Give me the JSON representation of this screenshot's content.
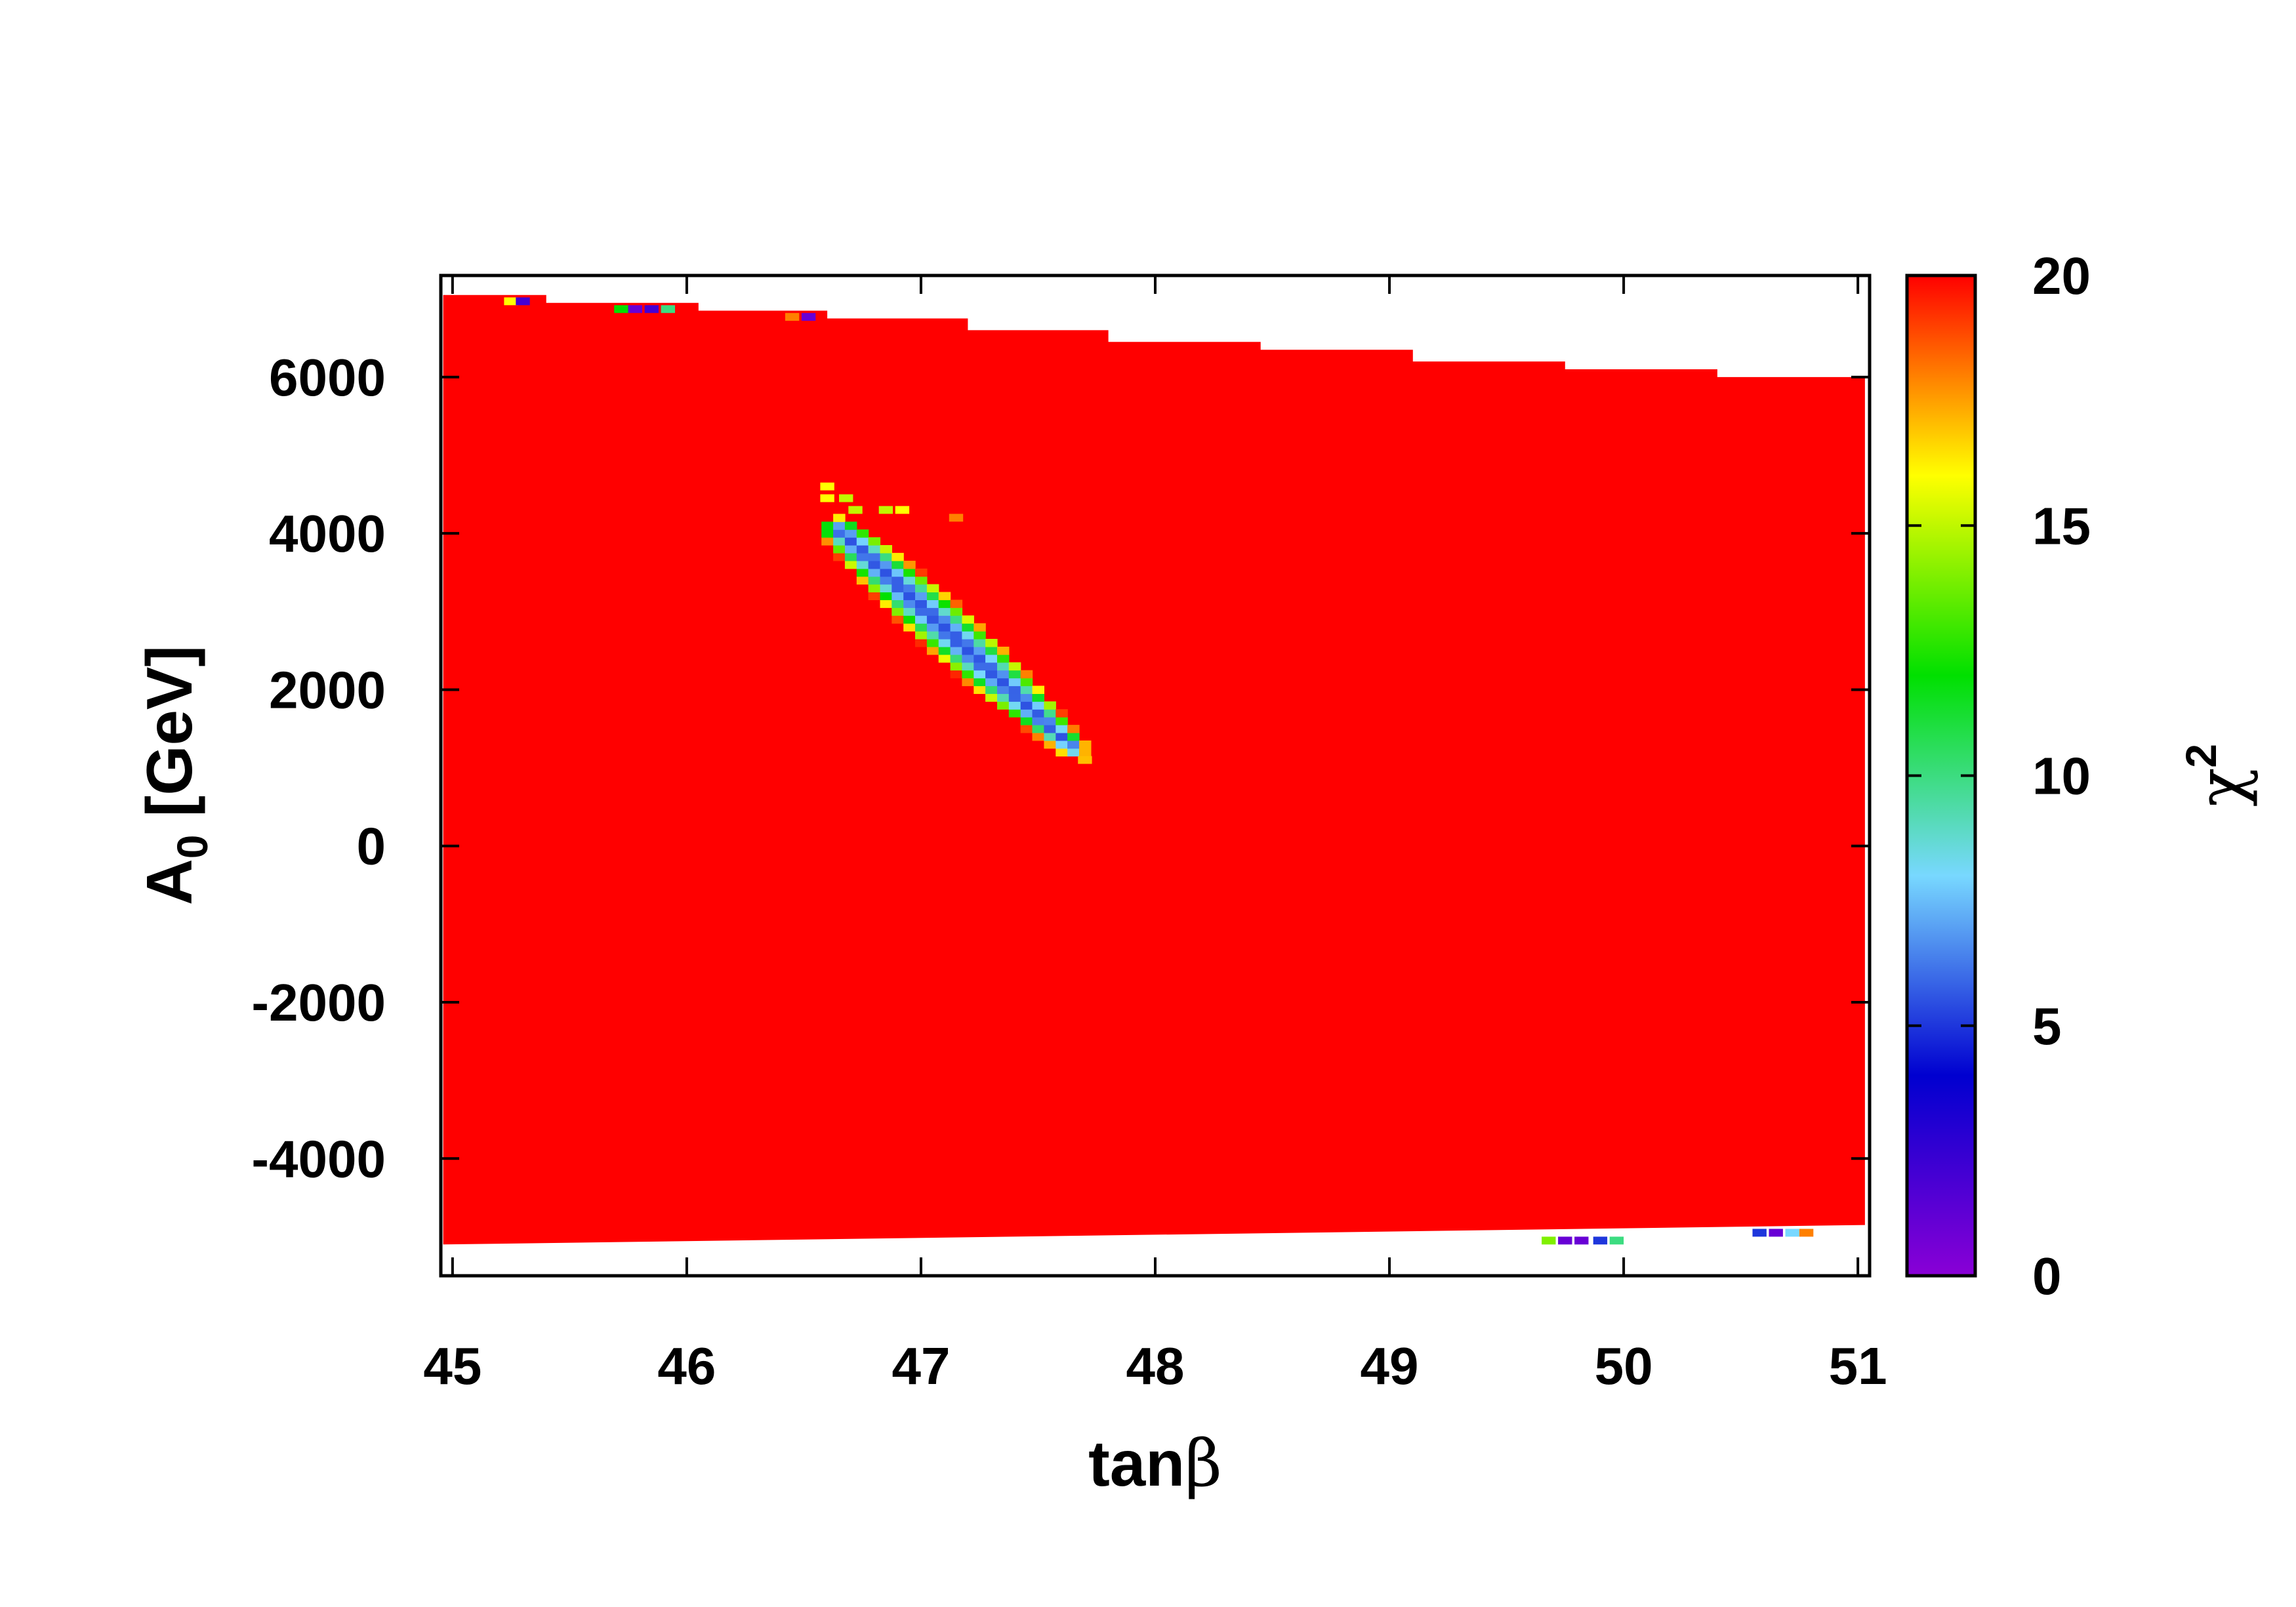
{
  "chart_data": {
    "type": "heatmap",
    "title": "",
    "xlabel": "tan",
    "xlabel_greek": "β",
    "ylabel": "A",
    "ylabel_sub": "0",
    "ylabel_unit": " [GeV]",
    "xlim": [
      44.95,
      51.05
    ],
    "ylim": [
      -5500,
      7300
    ],
    "x_ticks": [
      45,
      46,
      47,
      48,
      49,
      50,
      51
    ],
    "x_tick_labels": [
      "45",
      "46",
      "47",
      "48",
      "49",
      "50",
      "51"
    ],
    "y_ticks": [
      -4000,
      -2000,
      0,
      2000,
      4000,
      6000
    ],
    "y_tick_labels": [
      "-4000",
      "-2000",
      "0",
      "2000",
      "4000",
      "6000"
    ],
    "colorbar": {
      "label": "χ",
      "label_sup": "2",
      "range": [
        0,
        20
      ],
      "ticks": [
        0,
        5,
        10,
        15,
        20
      ],
      "tick_labels": [
        "0",
        "5",
        "10",
        "15",
        "20"
      ],
      "colormap": "rainbow",
      "stops": [
        "#8a00d6",
        "#0000d0",
        "#78d8ff",
        "#00e000",
        "#ffff00",
        "#ff0000"
      ]
    },
    "background_value": 20,
    "region": {
      "x_range": [
        44.96,
        51.03
      ],
      "y_bottom_left": -5100,
      "y_bottom_right": -4850,
      "top_boundary_steps": [
        [
          44.96,
          45.4,
          7050
        ],
        [
          45.4,
          46.05,
          6950
        ],
        [
          46.05,
          46.6,
          6850
        ],
        [
          46.6,
          47.2,
          6750
        ],
        [
          47.2,
          47.8,
          6600
        ],
        [
          47.8,
          48.45,
          6450
        ],
        [
          48.45,
          49.1,
          6350
        ],
        [
          49.1,
          49.75,
          6200
        ],
        [
          49.75,
          50.4,
          6100
        ],
        [
          50.4,
          51.03,
          6000
        ]
      ]
    },
    "minimum_valley": {
      "start": [
        46.65,
        4050
      ],
      "end": [
        47.65,
        1250
      ],
      "half_width": 0.14,
      "center_chi2": 5.5
    },
    "scattered_points": [
      {
        "x": 45.25,
        "y": 6970,
        "chi2": 16
      },
      {
        "x": 45.3,
        "y": 6970,
        "chi2": 2
      },
      {
        "x": 45.72,
        "y": 6870,
        "chi2": 12
      },
      {
        "x": 45.78,
        "y": 6870,
        "chi2": 1
      },
      {
        "x": 45.85,
        "y": 6870,
        "chi2": 2
      },
      {
        "x": 45.92,
        "y": 6870,
        "chi2": 10
      },
      {
        "x": 46.45,
        "y": 6770,
        "chi2": 18
      },
      {
        "x": 46.52,
        "y": 6770,
        "chi2": 1
      },
      {
        "x": 46.6,
        "y": 4600,
        "chi2": 16
      },
      {
        "x": 46.6,
        "y": 4450,
        "chi2": 16
      },
      {
        "x": 46.68,
        "y": 4450,
        "chi2": 15
      },
      {
        "x": 46.72,
        "y": 4300,
        "chi2": 15
      },
      {
        "x": 46.85,
        "y": 4300,
        "chi2": 15
      },
      {
        "x": 46.92,
        "y": 4300,
        "chi2": 16
      },
      {
        "x": 47.15,
        "y": 4200,
        "chi2": 18
      },
      {
        "x": 47.7,
        "y": 1100,
        "chi2": 17
      },
      {
        "x": 49.68,
        "y": -5050,
        "chi2": 14
      },
      {
        "x": 49.75,
        "y": -5050,
        "chi2": 1
      },
      {
        "x": 49.82,
        "y": -5050,
        "chi2": 1
      },
      {
        "x": 49.9,
        "y": -5050,
        "chi2": 5
      },
      {
        "x": 49.97,
        "y": -5050,
        "chi2": 10
      },
      {
        "x": 50.58,
        "y": -4950,
        "chi2": 5
      },
      {
        "x": 50.65,
        "y": -4950,
        "chi2": 1
      },
      {
        "x": 50.72,
        "y": -4950,
        "chi2": 8
      },
      {
        "x": 50.78,
        "y": -4950,
        "chi2": 18
      }
    ],
    "grid": false,
    "legend": "none"
  }
}
